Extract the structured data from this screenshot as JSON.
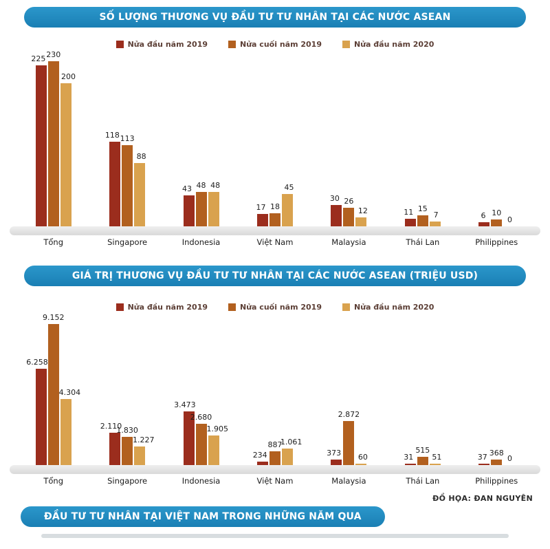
{
  "colors": {
    "header_bg": "#1e86bb",
    "header_text": "#ffffff",
    "series": [
      "#9b2d1d",
      "#b2601f",
      "#d9a24e"
    ],
    "baseline_strip": "#e3e3e3",
    "value_label": "#1c1c1c",
    "legend_text": "#5d4037"
  },
  "credit": "ĐỒ HỌA: ĐAN NGUYÊN",
  "footer_title": "ĐẦU TƯ TƯ NHÂN TẠI VIỆT NAM TRONG NHỮNG NĂM QUA",
  "chart_data": [
    {
      "type": "bar",
      "title": "SỐ LƯỢNG THƯƠNG VỤ ĐẦU TƯ TƯ NHÂN TẠI CÁC NƯỚC ASEAN",
      "categories": [
        "Tổng",
        "Singapore",
        "Indonesia",
        "Việt Nam",
        "Malaysia",
        "Thái Lan",
        "Philippines"
      ],
      "series": [
        {
          "name": "Nửa đầu năm 2019",
          "values": [
            225,
            118,
            43,
            17,
            30,
            11,
            6
          ],
          "labels": [
            "225",
            "118",
            "43",
            "17",
            "30",
            "11",
            "6"
          ]
        },
        {
          "name": "Nửa cuối năm 2019",
          "values": [
            230,
            113,
            48,
            18,
            26,
            15,
            10
          ],
          "labels": [
            "230",
            "113",
            "48",
            "18",
            "26",
            "15",
            "10"
          ]
        },
        {
          "name": "Nửa đầu năm 2020",
          "values": [
            200,
            88,
            48,
            45,
            12,
            7,
            0
          ],
          "labels": [
            "200",
            "88",
            "48",
            "45",
            "12",
            "7",
            "0"
          ]
        }
      ],
      "xlabel": "",
      "ylabel": "",
      "ylim": [
        0,
        240
      ],
      "grid": false,
      "legend_position": "top",
      "value_labels": true
    },
    {
      "type": "bar",
      "title": "GIÁ TRỊ THƯƠNG VỤ ĐẦU TƯ TƯ NHÂN TẠI CÁC NƯỚC ASEAN (TRIỆU USD)",
      "categories": [
        "Tổng",
        "Singapore",
        "Indonesia",
        "Việt Nam",
        "Malaysia",
        "Thái Lan",
        "Philippines"
      ],
      "series": [
        {
          "name": "Nửa đầu năm 2019",
          "values": [
            6258,
            2110,
            3473,
            234,
            373,
            31,
            37
          ],
          "labels": [
            "6.258",
            "2.110",
            "3.473",
            "234",
            "373",
            "31",
            "37"
          ]
        },
        {
          "name": "Nửa cuối năm 2019",
          "values": [
            9152,
            1830,
            2680,
            887,
            2872,
            515,
            368
          ],
          "labels": [
            "9.152",
            "1.830",
            "2.680",
            "887",
            "2.872",
            "515",
            "368"
          ]
        },
        {
          "name": "Nửa đầu năm 2020",
          "values": [
            4304,
            1227,
            1905,
            1061,
            60,
            51,
            0
          ],
          "labels": [
            "4.304",
            "1.227",
            "1.905",
            "1.061",
            "60",
            "51",
            "0"
          ]
        }
      ],
      "xlabel": "",
      "ylabel": "",
      "ylim": [
        0,
        9600
      ],
      "grid": false,
      "legend_position": "top",
      "value_labels": true
    }
  ]
}
